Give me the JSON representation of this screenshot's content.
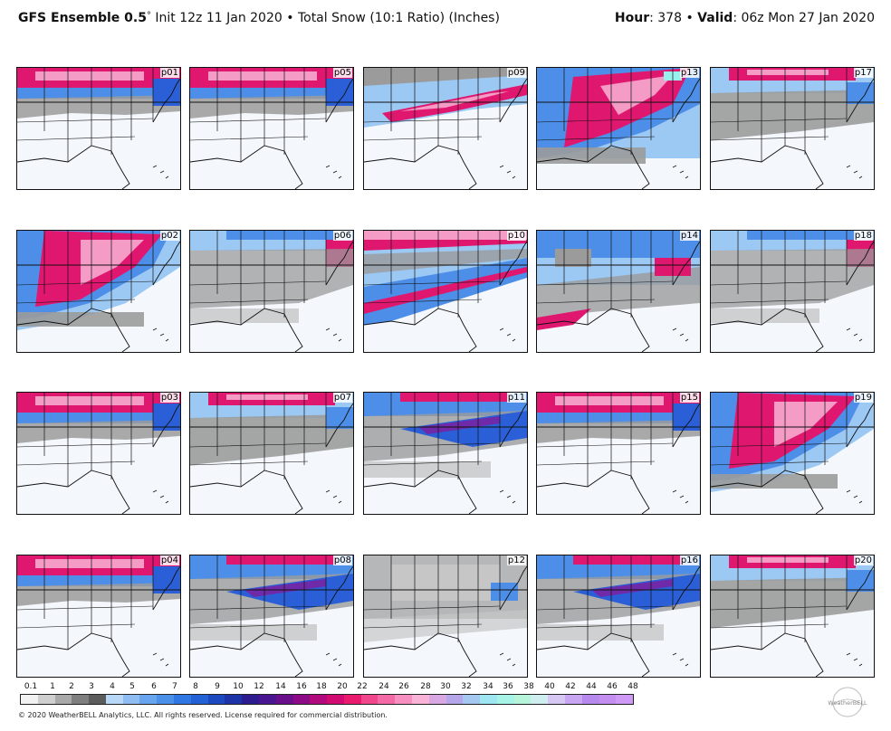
{
  "header": {
    "model": "GFS Ensemble 0.5",
    "degree": "°",
    "init": " Init 12z 11 Jan 2020",
    "bullet": " • ",
    "field": "Total Snow (10:1 Ratio) (Inches)",
    "hour_label": "Hour",
    "hour_value": ": 378",
    "valid_label": "Valid",
    "valid_value": ": 06z Mon 27 Jan 2020"
  },
  "panels": [
    {
      "label": "p01",
      "snow": "heavy-north"
    },
    {
      "label": "p05",
      "snow": "heavy-north"
    },
    {
      "label": "p09",
      "snow": "band-mid"
    },
    {
      "label": "p13",
      "snow": "heavy-widespread"
    },
    {
      "label": "p17",
      "snow": "moderate-north"
    },
    {
      "label": "p02",
      "snow": "heavy-diagonal"
    },
    {
      "label": "p06",
      "snow": "light-north"
    },
    {
      "label": "p10",
      "snow": "band-south"
    },
    {
      "label": "p14",
      "snow": "moderate-widespread"
    },
    {
      "label": "p18",
      "snow": "light-north"
    },
    {
      "label": "p03",
      "snow": "heavy-north"
    },
    {
      "label": "p07",
      "snow": "moderate-north"
    },
    {
      "label": "p11",
      "snow": "moderate-mid"
    },
    {
      "label": "p15",
      "snow": "heavy-north"
    },
    {
      "label": "p19",
      "snow": "heavy-diagonal"
    },
    {
      "label": "p04",
      "snow": "heavy-north"
    },
    {
      "label": "p08",
      "snow": "moderate-mid"
    },
    {
      "label": "p12",
      "snow": "light-widespread"
    },
    {
      "label": "p16",
      "snow": "moderate-mid"
    },
    {
      "label": "p20",
      "snow": "moderate-north"
    }
  ],
  "colorbar": {
    "labels": [
      "0.1",
      "1",
      "2",
      "3",
      "4",
      "5",
      "6",
      "7",
      "8",
      "9",
      "10",
      "12",
      "14",
      "16",
      "18",
      "20",
      "22",
      "24",
      "26",
      "28",
      "30",
      "32",
      "34",
      "36",
      "38",
      "40",
      "42",
      "44",
      "46",
      "48"
    ],
    "colors": [
      "#f2f2f2",
      "#cfcfcf",
      "#a9a9a9",
      "#7f7f7f",
      "#5c5c5c",
      "#b9d7f7",
      "#8fbdf2",
      "#68a5ee",
      "#4a8fe8",
      "#2f77e2",
      "#2460d6",
      "#1c49c0",
      "#1d33a8",
      "#2c1c8f",
      "#4a1590",
      "#6a0f8c",
      "#8d0a86",
      "#b00a7d",
      "#d10b71",
      "#ea1b6e",
      "#f1468c",
      "#f46aa6",
      "#f78fc0",
      "#f9b3d6",
      "#d9a8e2",
      "#b5a6ea",
      "#a5c8f0",
      "#9ee6f2",
      "#a7f3e6",
      "#b6f5d9",
      "#cfeef0",
      "#d7c8f3",
      "#c9a6f1",
      "#b889ed",
      "#c48ef1",
      "#cf9af5"
    ],
    "sequential_tones": [
      "#7f7f7f",
      "#a9a9a9",
      "#6aa8ee",
      "#2f6fe0",
      "#e8177a",
      "#f6a4cf",
      "#9ff0ee"
    ]
  },
  "footer": {
    "copyright": "© 2020 WeatherBELL Analytics, LLC. All rights reserved. License required for commercial distribution."
  },
  "logo": {
    "text": "WeatherBELL",
    "name": "weatherbell-logo"
  }
}
